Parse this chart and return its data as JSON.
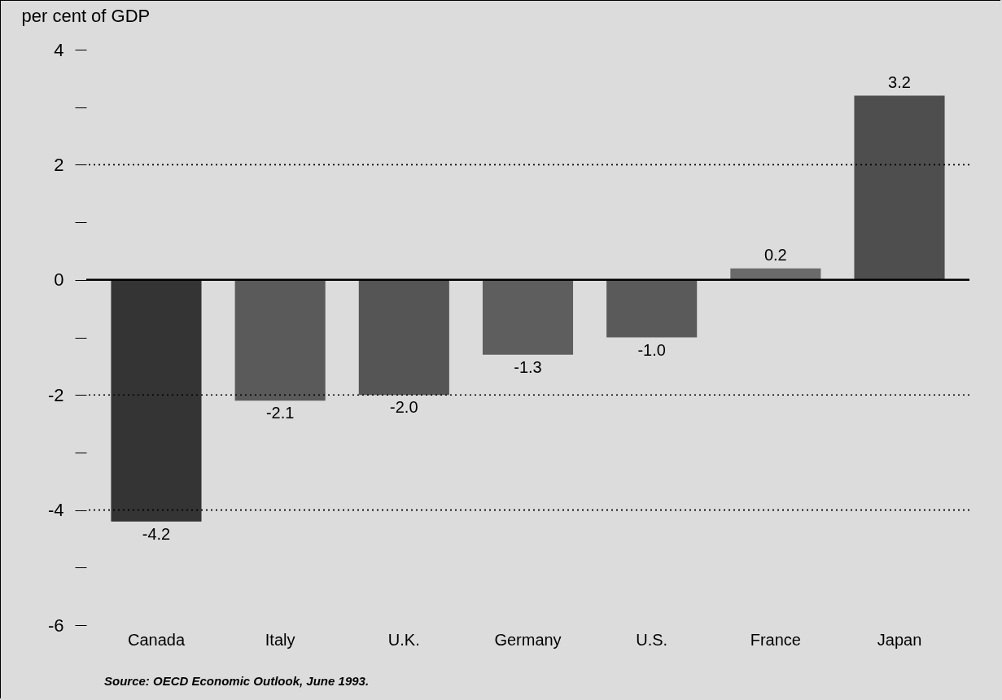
{
  "chart_data": {
    "type": "bar",
    "ylabel": "per cent of GDP",
    "categories": [
      "Canada",
      "Italy",
      "U.K.",
      "Germany",
      "U.S.",
      "France",
      "Japan"
    ],
    "values": [
      -4.2,
      -2.1,
      -2.0,
      -1.3,
      -1.0,
      0.2,
      3.2
    ],
    "value_labels": [
      "-4.2",
      "-2.1",
      "-2.0",
      "-1.3",
      "-1.0",
      "0.2",
      "3.2"
    ],
    "colors": [
      "#343434",
      "#5a5a5a",
      "#555555",
      "#5e5e5e",
      "#5a5a5a",
      "#6a6a6a",
      "#4e4e4e"
    ],
    "ylim": [
      -6,
      4
    ],
    "yticks": [
      4,
      {
        "value": 3,
        "label": null
      },
      2,
      {
        "value": 1,
        "label": null
      },
      0,
      {
        "value": -1,
        "label": null
      },
      -2,
      {
        "value": -3,
        "label": null
      },
      -4,
      {
        "value": -5,
        "label": null
      },
      -6
    ],
    "ref_lines": [
      {
        "axis": "y",
        "value": 2,
        "line_style": "dotted"
      },
      {
        "axis": "y",
        "value": 0,
        "line_style": "solid"
      },
      {
        "axis": "y",
        "value": -2,
        "line_style": "dotted"
      },
      {
        "axis": "y",
        "value": -4,
        "line_style": "dotted"
      }
    ],
    "annotations": [
      "Source: OECD Economic Outlook, June 1993."
    ]
  }
}
